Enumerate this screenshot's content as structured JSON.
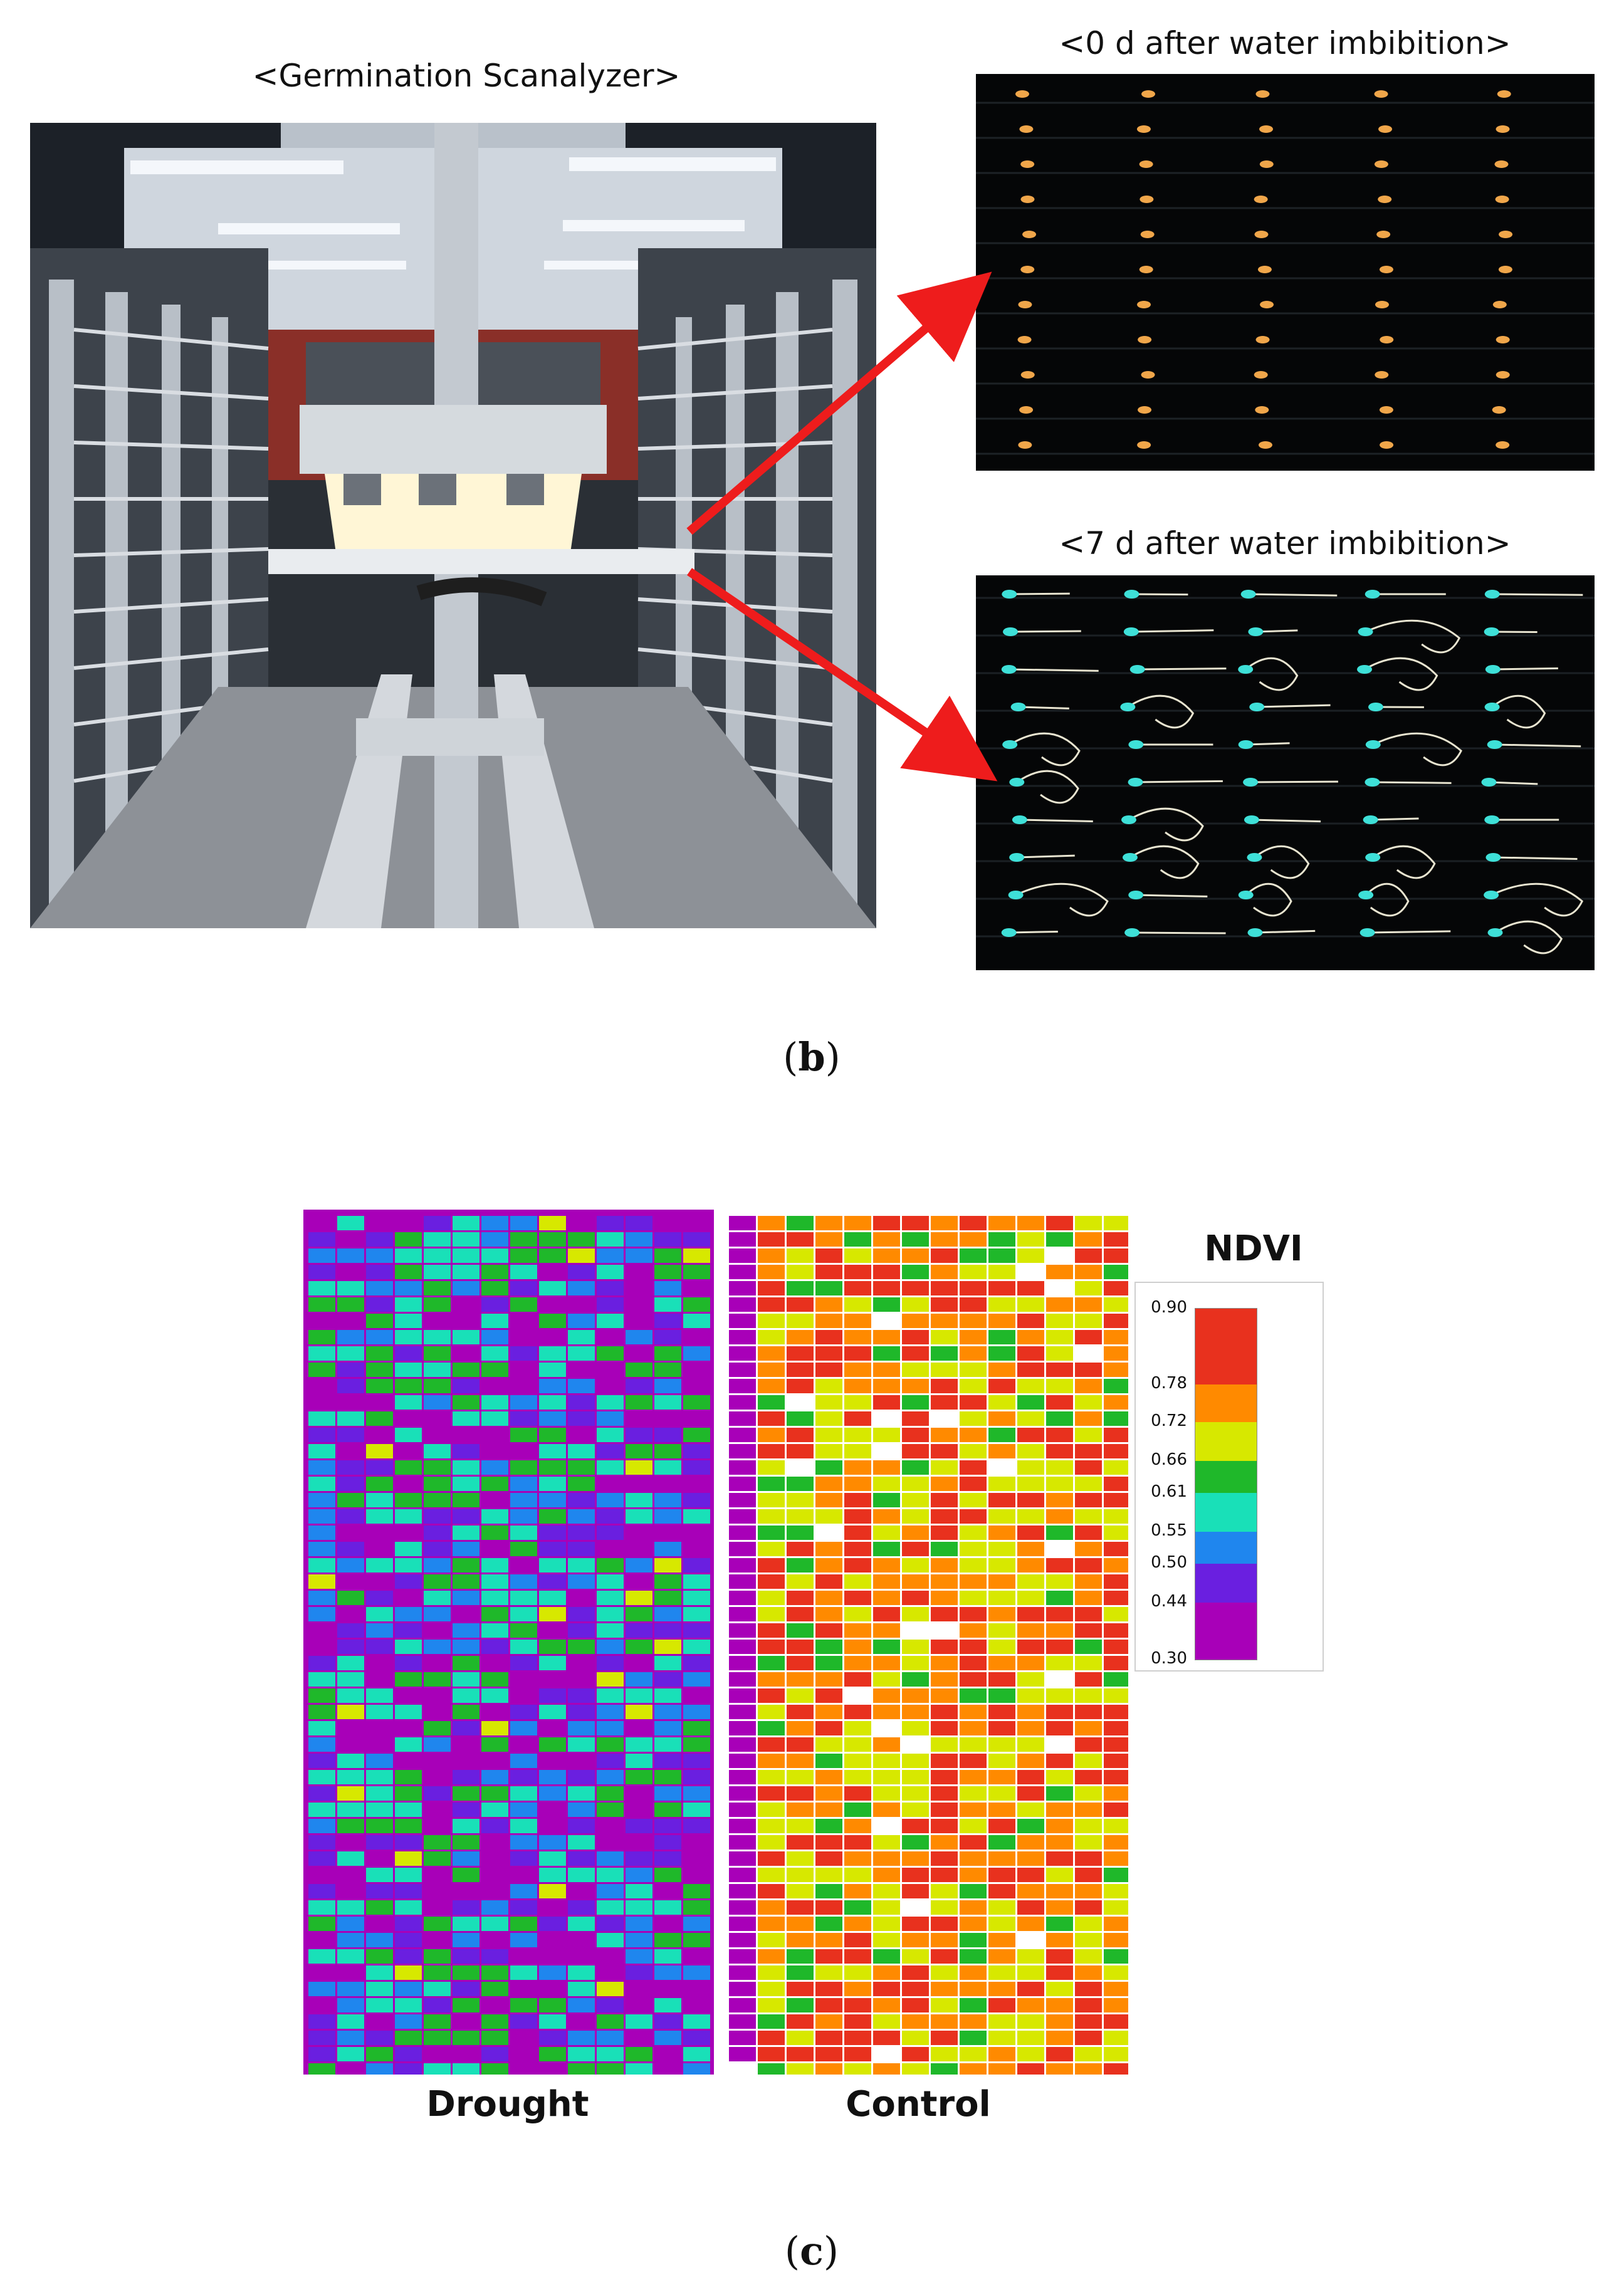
{
  "panel_b": {
    "photo_title": "<Germination Scanalyzer>",
    "img0_title": "<0 d after water imbibition>",
    "img7_title": "<7 d after water imbibition>",
    "letter_open": "(",
    "letter": "b",
    "letter_close": ")"
  },
  "panel_c": {
    "legend_title": "NDVI",
    "legend_ticks": [
      "0.90",
      "0.78",
      "0.72",
      "0.66",
      "0.61",
      "0.55",
      "0.50",
      "0.44",
      "0.30"
    ],
    "legend_colors": [
      "#e8311e",
      "#ff8a00",
      "#d7e800",
      "#1fb82a",
      "#19e0b8",
      "#1f86ee",
      "#6a1fe0",
      "#a800b8"
    ],
    "drought_label": "Drought",
    "control_label": "Control",
    "letter_open": "(",
    "letter": "c",
    "letter_close": ")"
  },
  "colors": {
    "arrow": "#ee1c1c",
    "seed": "#f0a64a",
    "seedling_root": "#e8e4d0",
    "seedling_head": "#3ee0d8"
  }
}
